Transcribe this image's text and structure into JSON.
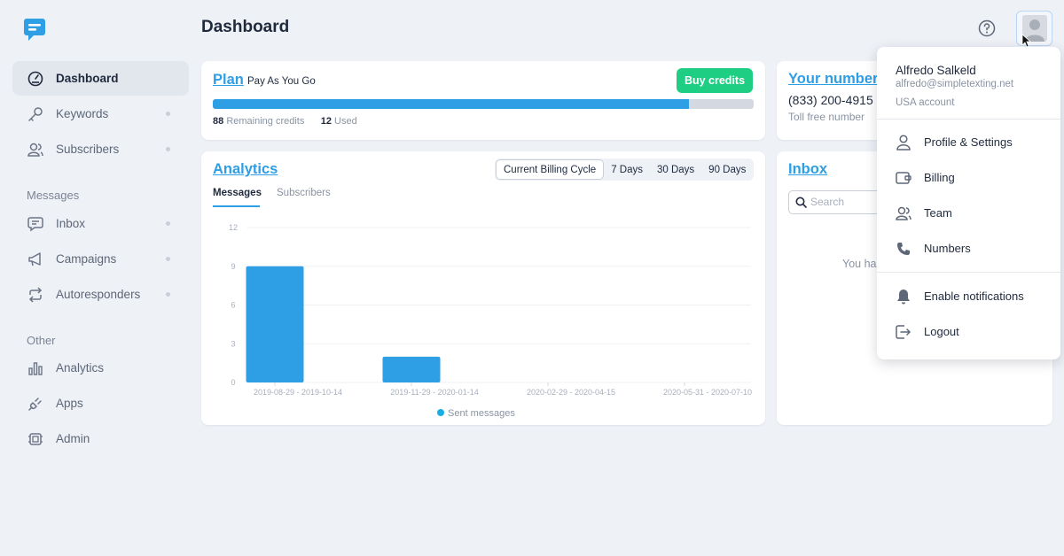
{
  "header": {
    "title": "Dashboard"
  },
  "sidebar": {
    "items": [
      {
        "label": "Dashboard",
        "icon": "dashboard-icon",
        "active": true
      },
      {
        "label": "Keywords",
        "icon": "key-icon"
      },
      {
        "label": "Subscribers",
        "icon": "users-icon"
      },
      {
        "label": "Inbox",
        "icon": "message-icon"
      },
      {
        "label": "Campaigns",
        "icon": "megaphone-icon"
      },
      {
        "label": "Autoresponders",
        "icon": "repeat-icon"
      },
      {
        "label": "Analytics",
        "icon": "bar-chart-icon"
      },
      {
        "label": "Apps",
        "icon": "plug-icon"
      },
      {
        "label": "Admin",
        "icon": "chip-icon"
      }
    ],
    "sections": {
      "messages": "Messages",
      "other": "Other"
    }
  },
  "plan": {
    "title": "Plan",
    "name": "Pay As You Go",
    "buy_label": "Buy credits",
    "remaining": "88",
    "remaining_label": "Remaining credits",
    "used": "12",
    "used_label": "Used",
    "remaining_fraction": 0.88
  },
  "analytics": {
    "title": "Analytics",
    "ranges": [
      "Current Billing Cycle",
      "7 Days",
      "30 Days",
      "90 Days"
    ],
    "selected_range": "Current Billing Cycle",
    "tabs": [
      "Messages",
      "Subscribers"
    ],
    "selected_tab": "Messages"
  },
  "chart_data": {
    "type": "bar",
    "categories": [
      "2019-08-29 - 2019-10-14",
      "2019-11-29 - 2020-01-14",
      "2020-02-29 - 2020-04-15",
      "2020-05-31 - 2020-07-10"
    ],
    "series": [
      {
        "name": "Sent messages",
        "values": [
          9,
          2,
          0,
          0
        ],
        "color": "#2e9ee5"
      }
    ],
    "yticks": [
      "0",
      "3",
      "6",
      "9",
      "12"
    ],
    "ylim": [
      0,
      12
    ],
    "grid": true,
    "legend": "bottom"
  },
  "number": {
    "title": "Your number",
    "value": "(833) 200-4915",
    "subtitle": "Toll free number"
  },
  "inbox": {
    "title": "Inbox",
    "search_placeholder": "Search",
    "empty_text": "You ha"
  },
  "user_menu": {
    "name": "Alfredo Salkeld",
    "email": "alfredo@simpletexting.net",
    "account": "USA account",
    "items": [
      {
        "label": "Profile & Settings",
        "icon": "user-icon"
      },
      {
        "label": "Billing",
        "icon": "wallet-icon"
      },
      {
        "label": "Team",
        "icon": "team-icon"
      },
      {
        "label": "Numbers",
        "icon": "phone-icon"
      },
      {
        "label": "Enable notifications",
        "icon": "bell-icon"
      },
      {
        "label": "Logout",
        "icon": "logout-icon"
      }
    ]
  },
  "colors": {
    "accent": "#2e9ee5",
    "success": "#1ecf83",
    "background": "#eef1f6"
  }
}
